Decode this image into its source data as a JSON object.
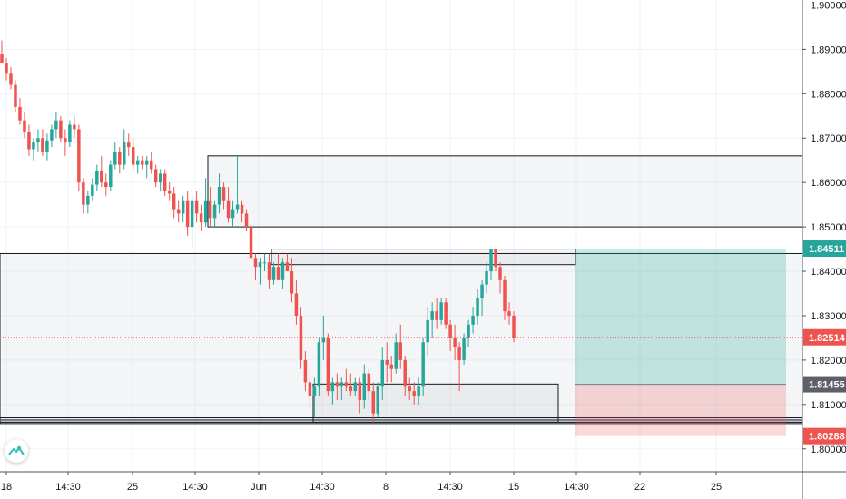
{
  "chart_data": {
    "type": "candlestick",
    "title": "",
    "y_axis": {
      "position": "right",
      "ticks": [
        "1.90000",
        "1.89000",
        "1.88000",
        "1.87000",
        "1.86000",
        "1.85000",
        "1.84000",
        "1.83000",
        "1.82000",
        "1.81000",
        "1.80000"
      ],
      "range": [
        1.7975,
        1.9005
      ]
    },
    "x_axis": {
      "ticks": [
        "18",
        "14:30",
        "25",
        "14:30",
        "Jun",
        "14:30",
        "8",
        "14:30",
        "15",
        "14:30",
        "22",
        "25"
      ]
    },
    "price_labels": [
      {
        "text": "1.84511",
        "value": 1.84511,
        "color": "#26a69a"
      },
      {
        "text": "1.82514",
        "value": 1.82514,
        "color": "#ef5350"
      },
      {
        "text": "1.81455",
        "value": 1.81455,
        "color": "#5d606b"
      },
      {
        "text": "1.80288",
        "value": 1.80288,
        "color": "#ef5350"
      }
    ],
    "current_price": 1.82514,
    "position": {
      "side": "long",
      "entry": 1.81455,
      "target": 1.84511,
      "stop": 1.80288
    },
    "zones": [
      {
        "top": 1.866,
        "bottom": 1.85
      },
      {
        "top": 1.845,
        "bottom": 1.8415
      },
      {
        "top": 1.844,
        "bottom": 1.806
      },
      {
        "top": 1.8146,
        "bottom": 1.806
      },
      {
        "top": 1.807,
        "bottom": 1.806
      },
      {
        "top": 1.8065,
        "bottom": 1.8057
      }
    ],
    "candles": [
      [
        1.889,
        1.892,
        1.887,
        1.887
      ],
      [
        1.887,
        1.888,
        1.883,
        1.8845
      ],
      [
        1.8845,
        1.886,
        1.881,
        1.882
      ],
      [
        1.882,
        1.883,
        1.876,
        1.877
      ],
      [
        1.877,
        1.879,
        1.873,
        1.874
      ],
      [
        1.874,
        1.876,
        1.87,
        1.8715
      ],
      [
        1.8715,
        1.873,
        1.866,
        1.8675
      ],
      [
        1.8675,
        1.87,
        1.865,
        1.869
      ],
      [
        1.869,
        1.872,
        1.867,
        1.87
      ],
      [
        1.87,
        1.872,
        1.866,
        1.867
      ],
      [
        1.867,
        1.871,
        1.865,
        1.8695
      ],
      [
        1.8695,
        1.873,
        1.868,
        1.872
      ],
      [
        1.872,
        1.876,
        1.87,
        1.874
      ],
      [
        1.874,
        1.875,
        1.869,
        1.87
      ],
      [
        1.87,
        1.872,
        1.866,
        1.869
      ],
      [
        1.869,
        1.874,
        1.868,
        1.873
      ],
      [
        1.873,
        1.875,
        1.87,
        1.872
      ],
      [
        1.872,
        1.873,
        1.858,
        1.86
      ],
      [
        1.86,
        1.861,
        1.853,
        1.855
      ],
      [
        1.855,
        1.858,
        1.853,
        1.857
      ],
      [
        1.857,
        1.861,
        1.856,
        1.8595
      ],
      [
        1.8595,
        1.864,
        1.858,
        1.8625
      ],
      [
        1.8625,
        1.866,
        1.859,
        1.86
      ],
      [
        1.86,
        1.862,
        1.857,
        1.859
      ],
      [
        1.859,
        1.865,
        1.858,
        1.864
      ],
      [
        1.864,
        1.869,
        1.863,
        1.867
      ],
      [
        1.867,
        1.868,
        1.862,
        1.864
      ],
      [
        1.864,
        1.872,
        1.863,
        1.869
      ],
      [
        1.869,
        1.871,
        1.866,
        1.868
      ],
      [
        1.868,
        1.87,
        1.863,
        1.864
      ],
      [
        1.864,
        1.866,
        1.862,
        1.865
      ],
      [
        1.865,
        1.866,
        1.863,
        1.864
      ],
      [
        1.864,
        1.866,
        1.861,
        1.865
      ],
      [
        1.865,
        1.867,
        1.862,
        1.863
      ],
      [
        1.863,
        1.864,
        1.859,
        1.86
      ],
      [
        1.86,
        1.863,
        1.858,
        1.862
      ],
      [
        1.862,
        1.863,
        1.857,
        1.858
      ],
      [
        1.858,
        1.86,
        1.856,
        1.8575
      ],
      [
        1.8575,
        1.859,
        1.852,
        1.854
      ],
      [
        1.854,
        1.856,
        1.851,
        1.853
      ],
      [
        1.853,
        1.857,
        1.851,
        1.856
      ],
      [
        1.856,
        1.858,
        1.848,
        1.85
      ],
      [
        1.85,
        1.857,
        1.845,
        1.856
      ],
      [
        1.856,
        1.858,
        1.851,
        1.853
      ],
      [
        1.853,
        1.855,
        1.849,
        1.851
      ],
      [
        1.851,
        1.861,
        1.85,
        1.856
      ],
      [
        1.856,
        1.859,
        1.85,
        1.852
      ],
      [
        1.852,
        1.856,
        1.85,
        1.855
      ],
      [
        1.855,
        1.862,
        1.853,
        1.859
      ],
      [
        1.859,
        1.86,
        1.854,
        1.856
      ],
      [
        1.856,
        1.859,
        1.851,
        1.852
      ],
      [
        1.852,
        1.856,
        1.85,
        1.854
      ],
      [
        1.854,
        1.866,
        1.853,
        1.855
      ],
      [
        1.855,
        1.856,
        1.851,
        1.853
      ],
      [
        1.853,
        1.854,
        1.849,
        1.85
      ],
      [
        1.85,
        1.851,
        1.842,
        1.843
      ],
      [
        1.843,
        1.844,
        1.838,
        1.841
      ],
      [
        1.841,
        1.843,
        1.837,
        1.842
      ],
      [
        1.842,
        1.844,
        1.84,
        1.842
      ],
      [
        1.842,
        1.844,
        1.836,
        1.838
      ],
      [
        1.838,
        1.842,
        1.837,
        1.841
      ],
      [
        1.841,
        1.844,
        1.839,
        1.838
      ],
      [
        1.838,
        1.843,
        1.836,
        1.842
      ],
      [
        1.842,
        1.844,
        1.84,
        1.84
      ],
      [
        1.84,
        1.843,
        1.833,
        1.835
      ],
      [
        1.835,
        1.838,
        1.828,
        1.83
      ],
      [
        1.83,
        1.832,
        1.818,
        1.82
      ],
      [
        1.82,
        1.822,
        1.813,
        1.815
      ],
      [
        1.815,
        1.818,
        1.809,
        1.812
      ],
      [
        1.812,
        1.816,
        1.807,
        1.814
      ],
      [
        1.814,
        1.825,
        1.812,
        1.824
      ],
      [
        1.824,
        1.83,
        1.82,
        1.825
      ],
      [
        1.825,
        1.826,
        1.812,
        1.813
      ],
      [
        1.813,
        1.816,
        1.81,
        1.815
      ],
      [
        1.815,
        1.817,
        1.811,
        1.814
      ],
      [
        1.814,
        1.816,
        1.811,
        1.815
      ],
      [
        1.815,
        1.818,
        1.813,
        1.814
      ],
      [
        1.814,
        1.817,
        1.812,
        1.813
      ],
      [
        1.813,
        1.816,
        1.812,
        1.815
      ],
      [
        1.815,
        1.816,
        1.808,
        1.811
      ],
      [
        1.811,
        1.819,
        1.809,
        1.817
      ],
      [
        1.817,
        1.818,
        1.811,
        1.813
      ],
      [
        1.813,
        1.815,
        1.806,
        1.808
      ],
      [
        1.808,
        1.815,
        1.807,
        1.814
      ],
      [
        1.814,
        1.823,
        1.811,
        1.82
      ],
      [
        1.82,
        1.824,
        1.815,
        1.819
      ],
      [
        1.819,
        1.821,
        1.815,
        1.818
      ],
      [
        1.818,
        1.826,
        1.817,
        1.824
      ],
      [
        1.824,
        1.828,
        1.818,
        1.82
      ],
      [
        1.82,
        1.821,
        1.812,
        1.814
      ],
      [
        1.814,
        1.816,
        1.811,
        1.813
      ],
      [
        1.813,
        1.815,
        1.81,
        1.812
      ],
      [
        1.812,
        1.816,
        1.81,
        1.814
      ],
      [
        1.814,
        1.825,
        1.812,
        1.824
      ],
      [
        1.824,
        1.832,
        1.821,
        1.829
      ],
      [
        1.829,
        1.833,
        1.825,
        1.831
      ],
      [
        1.831,
        1.834,
        1.827,
        1.829
      ],
      [
        1.829,
        1.834,
        1.828,
        1.833
      ],
      [
        1.833,
        1.834,
        1.827,
        1.828
      ],
      [
        1.828,
        1.829,
        1.822,
        1.825
      ],
      [
        1.825,
        1.828,
        1.82,
        1.823
      ],
      [
        1.823,
        1.824,
        1.813,
        1.82
      ],
      [
        1.82,
        1.826,
        1.819,
        1.825
      ],
      [
        1.825,
        1.829,
        1.823,
        1.828
      ],
      [
        1.828,
        1.832,
        1.826,
        1.83
      ],
      [
        1.83,
        1.836,
        1.828,
        1.834
      ],
      [
        1.834,
        1.838,
        1.83,
        1.837
      ],
      [
        1.837,
        1.842,
        1.835,
        1.84
      ],
      [
        1.84,
        1.845,
        1.838,
        1.845
      ],
      [
        1.845,
        1.8451,
        1.84,
        1.841
      ],
      [
        1.841,
        1.842,
        1.835,
        1.838
      ],
      [
        1.838,
        1.839,
        1.829,
        1.831
      ],
      [
        1.831,
        1.833,
        1.828,
        1.83
      ],
      [
        1.83,
        1.831,
        1.824,
        1.8251
      ]
    ]
  }
}
